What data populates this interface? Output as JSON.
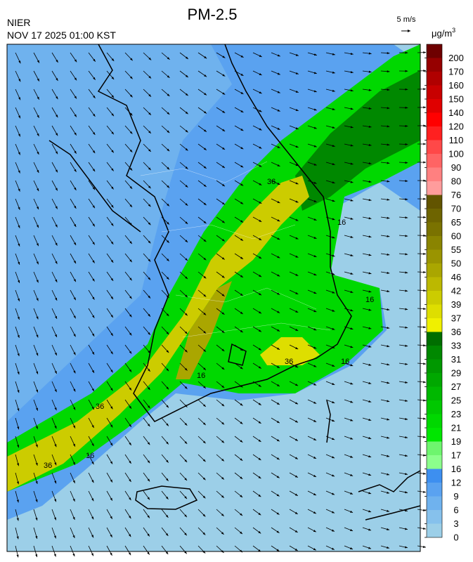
{
  "header": {
    "title": "PM-2.5",
    "agency": "NIER",
    "datetime": "NOV 17 2025 01:00 KST"
  },
  "wind_scale": {
    "label": "5 m/s"
  },
  "colorbar": {
    "unit": "μg/m",
    "unit_exponent": "3",
    "levels": [
      0,
      3,
      6,
      9,
      12,
      16,
      17,
      19,
      21,
      23,
      25,
      27,
      29,
      31,
      33,
      36,
      37,
      39,
      42,
      46,
      50,
      55,
      60,
      65,
      70,
      76,
      80,
      90,
      100,
      110,
      120,
      140,
      150,
      160,
      170,
      200
    ],
    "colors": [
      "#9ccfe8",
      "#86c1ec",
      "#6fb2ee",
      "#5aa2f0",
      "#3d8ff0",
      "#8cff8c",
      "#6ef56e",
      "#00e600",
      "#00d800",
      "#00c800",
      "#00b800",
      "#00a800",
      "#009800",
      "#008800",
      "#006e00",
      "#f0f000",
      "#dede00",
      "#cccc00",
      "#bcb800",
      "#aaa600",
      "#9a9400",
      "#8a8400",
      "#7a7200",
      "#6e6400",
      "#625400",
      "#ff9c9c",
      "#ff8080",
      "#ff6464",
      "#ff4848",
      "#ff2020",
      "#ff0000",
      "#e00000",
      "#c80000",
      "#b00000",
      "#960000",
      "#6e0000"
    ]
  },
  "contour_labels": [
    "16",
    "16",
    "16",
    "16",
    "16",
    "36",
    "36",
    "36",
    "36"
  ]
}
